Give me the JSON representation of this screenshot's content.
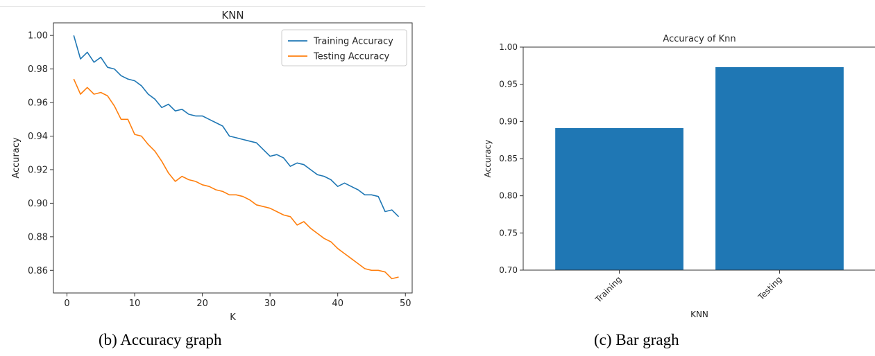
{
  "captions": {
    "left": "(b) Accuracy graph",
    "right": "(c) Bar gragh"
  },
  "chart_data": [
    {
      "type": "line",
      "title": "KNN",
      "xlabel": "K",
      "ylabel": "Accuracy",
      "xlim": [
        -2,
        51
      ],
      "ylim": [
        0.8465,
        1.0075
      ],
      "x_ticks": [
        0,
        10,
        20,
        30,
        40,
        50
      ],
      "x_tick_labels": [
        "0",
        "10",
        "20",
        "30",
        "40",
        "50"
      ],
      "y_ticks": [
        0.86,
        0.88,
        0.9,
        0.92,
        0.94,
        0.96,
        0.98,
        1.0
      ],
      "y_tick_labels": [
        "0.86",
        "0.88",
        "0.90",
        "0.92",
        "0.94",
        "0.96",
        "0.98",
        "1.00"
      ],
      "grid": false,
      "legend": "top-right",
      "x": [
        1,
        2,
        3,
        4,
        5,
        6,
        7,
        8,
        9,
        10,
        11,
        12,
        13,
        14,
        15,
        16,
        17,
        18,
        19,
        20,
        21,
        22,
        23,
        24,
        25,
        26,
        27,
        28,
        29,
        30,
        31,
        32,
        33,
        34,
        35,
        36,
        37,
        38,
        39,
        40,
        41,
        42,
        43,
        44,
        45,
        46,
        47,
        48,
        49
      ],
      "series": [
        {
          "name": "Training Accuracy",
          "color": "#1f77b4",
          "values": [
            1.0,
            0.986,
            0.99,
            0.984,
            0.987,
            0.981,
            0.98,
            0.976,
            0.974,
            0.973,
            0.97,
            0.965,
            0.962,
            0.957,
            0.959,
            0.955,
            0.956,
            0.953,
            0.952,
            0.952,
            0.95,
            0.948,
            0.946,
            0.94,
            0.939,
            0.938,
            0.937,
            0.936,
            0.932,
            0.928,
            0.929,
            0.927,
            0.922,
            0.924,
            0.923,
            0.92,
            0.917,
            0.916,
            0.914,
            0.91,
            0.912,
            0.91,
            0.908,
            0.905,
            0.905,
            0.904,
            0.895,
            0.896,
            0.892
          ]
        },
        {
          "name": "Testing Accuracy",
          "color": "#ff7f0e",
          "values": [
            0.974,
            0.965,
            0.969,
            0.965,
            0.966,
            0.964,
            0.958,
            0.95,
            0.95,
            0.941,
            0.94,
            0.935,
            0.931,
            0.925,
            0.918,
            0.913,
            0.916,
            0.914,
            0.913,
            0.911,
            0.91,
            0.908,
            0.907,
            0.905,
            0.905,
            0.904,
            0.902,
            0.899,
            0.898,
            0.897,
            0.895,
            0.893,
            0.892,
            0.887,
            0.889,
            0.885,
            0.882,
            0.879,
            0.877,
            0.873,
            0.87,
            0.867,
            0.864,
            0.861,
            0.86,
            0.86,
            0.859,
            0.855,
            0.856
          ]
        }
      ]
    },
    {
      "type": "bar",
      "title": "Accuracy of Knn",
      "xlabel": "KNN",
      "ylabel": "Accuracy",
      "categories": [
        "Training",
        "Testing"
      ],
      "values": [
        0.891,
        0.973
      ],
      "ylim": [
        0.7,
        1.0
      ],
      "y_ticks": [
        0.7,
        0.75,
        0.8,
        0.85,
        0.9,
        0.95,
        1.0
      ],
      "y_tick_labels": [
        "0.70",
        "0.75",
        "0.80",
        "0.85",
        "0.90",
        "0.95",
        "1.00"
      ],
      "color": "#1f77b4",
      "grid": false
    }
  ]
}
